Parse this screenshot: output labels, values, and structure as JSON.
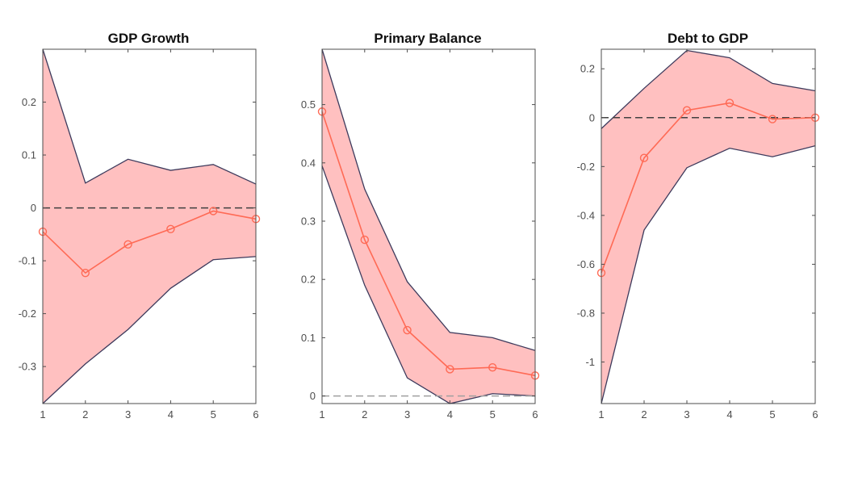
{
  "figure": {
    "background": "#ffffff"
  },
  "colors": {
    "band_fill": "#ffc0c0",
    "band_edge": "#3d3a5c",
    "line": "#ff6a55",
    "zero_line": "#404040",
    "zero_line_light": "#a0a0a0",
    "axis": "#4d4d4d"
  },
  "chart_data": [
    {
      "type": "line",
      "title": "GDP Growth",
      "xlabel": "",
      "ylabel": "",
      "x": [
        1,
        2,
        3,
        4,
        5,
        6
      ],
      "xlim": [
        1,
        6
      ],
      "ylim": [
        -0.37,
        0.3
      ],
      "xticks": [
        1,
        2,
        3,
        4,
        5,
        6
      ],
      "yticks": [
        -0.3,
        -0.2,
        -0.1,
        0,
        0.1,
        0.2
      ],
      "ytick_labels": [
        "-0.3",
        "-0.2",
        "-0.1",
        "0",
        "0.1",
        "0.2"
      ],
      "series": [
        {
          "name": "median",
          "values": [
            -0.045,
            -0.123,
            -0.069,
            -0.04,
            -0.006,
            -0.021
          ]
        },
        {
          "name": "upper",
          "values": [
            0.3,
            0.047,
            0.092,
            0.071,
            0.082,
            0.045
          ]
        },
        {
          "name": "lower",
          "values": [
            -0.37,
            -0.295,
            -0.23,
            -0.152,
            -0.098,
            -0.092
          ]
        }
      ],
      "zero_line": {
        "y": 0,
        "style": "dashed-dark"
      }
    },
    {
      "type": "line",
      "title": "Primary Balance",
      "xlabel": "",
      "ylabel": "",
      "x": [
        1,
        2,
        3,
        4,
        5,
        6
      ],
      "xlim": [
        1,
        6
      ],
      "ylim": [
        -0.013,
        0.595
      ],
      "xticks": [
        1,
        2,
        3,
        4,
        5,
        6
      ],
      "yticks": [
        0,
        0.1,
        0.2,
        0.3,
        0.4,
        0.5
      ],
      "ytick_labels": [
        "0",
        "0.1",
        "0.2",
        "0.3",
        "0.4",
        "0.5"
      ],
      "series": [
        {
          "name": "median",
          "values": [
            0.488,
            0.268,
            0.113,
            0.046,
            0.049,
            0.035
          ]
        },
        {
          "name": "upper",
          "values": [
            0.595,
            0.355,
            0.196,
            0.109,
            0.1,
            0.078
          ]
        },
        {
          "name": "lower",
          "values": [
            0.395,
            0.19,
            0.031,
            -0.013,
            0.004,
            0.0
          ]
        }
      ],
      "zero_line": {
        "y": 0,
        "style": "dashed-light"
      }
    },
    {
      "type": "line",
      "title": "Debt to GDP",
      "xlabel": "",
      "ylabel": "",
      "x": [
        1,
        2,
        3,
        4,
        5,
        6
      ],
      "xlim": [
        1,
        6
      ],
      "ylim": [
        -1.17,
        0.28
      ],
      "xticks": [
        1,
        2,
        3,
        4,
        5,
        6
      ],
      "yticks": [
        -1,
        -0.8,
        -0.6,
        -0.4,
        -0.2,
        0,
        0.2
      ],
      "ytick_labels": [
        "-1",
        "-0.8",
        "-0.6",
        "-0.4",
        "-0.2",
        "0",
        "0.2"
      ],
      "series": [
        {
          "name": "median",
          "values": [
            -0.635,
            -0.165,
            0.03,
            0.06,
            -0.006,
            0.0
          ]
        },
        {
          "name": "upper",
          "values": [
            -0.045,
            0.12,
            0.275,
            0.245,
            0.14,
            0.11
          ]
        },
        {
          "name": "lower",
          "values": [
            -1.17,
            -0.46,
            -0.205,
            -0.125,
            -0.16,
            -0.115
          ]
        }
      ],
      "zero_line": {
        "y": 0,
        "style": "dashed-dark"
      }
    }
  ]
}
